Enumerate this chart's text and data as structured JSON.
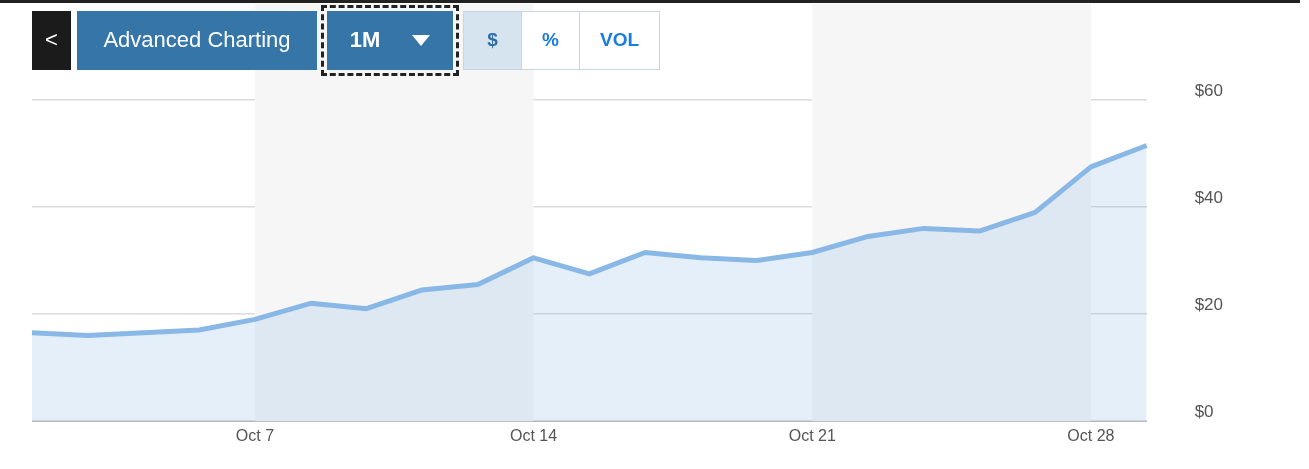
{
  "chart_data": {
    "type": "area",
    "annotations": [
      "<",
      "Advanced Charting",
      "1M",
      "$",
      "%",
      "VOL"
    ],
    "categories": [
      null,
      null,
      null,
      null,
      "Oct 7",
      null,
      null,
      null,
      null,
      "Oct 14",
      null,
      null,
      null,
      null,
      "Oct 21",
      null,
      null,
      null,
      null,
      "Oct 28",
      null
    ],
    "series": [
      {
        "color": "#8ab8e6",
        "values": [
          16.5,
          16,
          16.5,
          17,
          19,
          22,
          21,
          24.5,
          25.5,
          30.5,
          27.5,
          31.5,
          30.5,
          30,
          31.5,
          34.5,
          36,
          35.5,
          39,
          47.5,
          51.5
        ]
      }
    ],
    "ylim": [
      0,
      60
    ],
    "yticks": [
      {
        "value": 0,
        "label": "$0"
      },
      {
        "value": 20,
        "label": "$20"
      },
      {
        "value": 40,
        "label": "$40"
      },
      {
        "value": 60,
        "label": "$60"
      }
    ],
    "bands": [
      {
        "axis": "x",
        "from": "Oct 7",
        "to": "Oct 14",
        "color": "#f6f6f6"
      },
      {
        "axis": "x",
        "from": "Oct 21",
        "to": "Oct 28",
        "color": "#f6f6f6"
      }
    ],
    "grid": "y",
    "legend": false
  }
}
